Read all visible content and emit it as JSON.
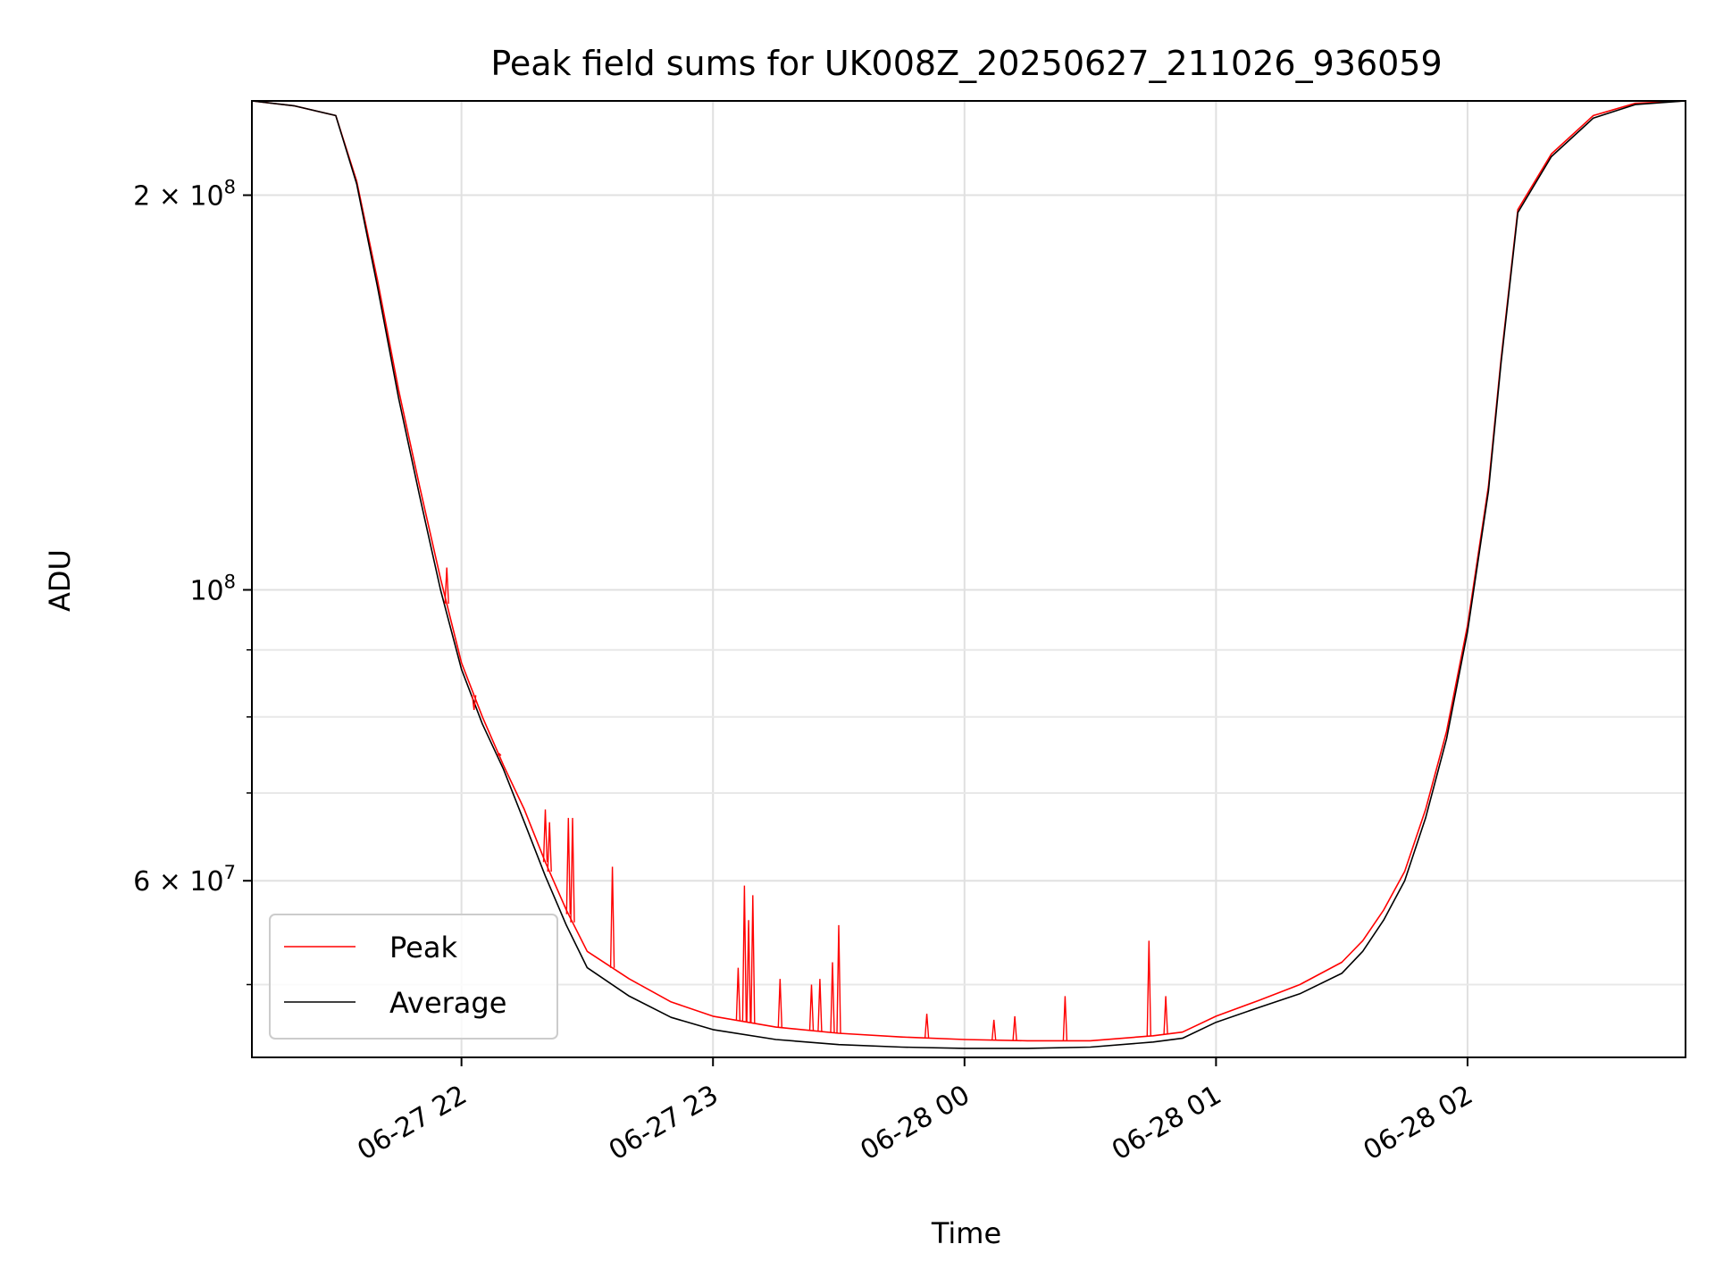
{
  "chart_data": {
    "type": "line",
    "title": "Peak field sums for UK008Z_20250627_211026_936059",
    "xlabel": "Time",
    "ylabel": "ADU",
    "yscale": "log",
    "ylim": [
      44000000,
      236000000
    ],
    "xlim": [
      "2025-06-27T21:10:00",
      "2025-06-28T02:52:00"
    ],
    "x_ticks": [
      {
        "value": "2025-06-27T22:00:00",
        "label": "06-27 22"
      },
      {
        "value": "2025-06-27T23:00:00",
        "label": "06-27 23"
      },
      {
        "value": "2025-06-28T00:00:00",
        "label": "06-28 00"
      },
      {
        "value": "2025-06-28T01:00:00",
        "label": "06-28 01"
      },
      {
        "value": "2025-06-28T02:00:00",
        "label": "06-28 02"
      }
    ],
    "y_major_ticks": [
      {
        "value": 200000000,
        "label": "2 × 10",
        "exp": "8"
      },
      {
        "value": 100000000,
        "label": "10",
        "exp": "8"
      },
      {
        "value": 60000000,
        "label": "6 × 10",
        "exp": "7"
      }
    ],
    "y_minor_ticks": [
      50000000,
      70000000,
      80000000,
      90000000
    ],
    "grid": true,
    "legend": {
      "position": "lower-left",
      "entries": [
        "Peak",
        "Average"
      ]
    },
    "series": [
      {
        "name": "Peak",
        "color": "#ff0000",
        "x": [
          "2025-06-27T21:10:00",
          "2025-06-27T21:20:00",
          "2025-06-27T21:30:00",
          "2025-06-27T21:35:00",
          "2025-06-27T21:40:00",
          "2025-06-27T21:45:00",
          "2025-06-27T21:50:00",
          "2025-06-27T21:55:00",
          "2025-06-27T22:00:00",
          "2025-06-27T22:05:00",
          "2025-06-27T22:10:00",
          "2025-06-27T22:15:00",
          "2025-06-27T22:20:00",
          "2025-06-27T22:25:00",
          "2025-06-27T22:30:00",
          "2025-06-27T22:40:00",
          "2025-06-27T22:50:00",
          "2025-06-27T23:00:00",
          "2025-06-27T23:15:00",
          "2025-06-27T23:30:00",
          "2025-06-27T23:45:00",
          "2025-06-28T00:00:00",
          "2025-06-28T00:15:00",
          "2025-06-28T00:30:00",
          "2025-06-28T00:45:00",
          "2025-06-28T00:52:00",
          "2025-06-28T01:00:00",
          "2025-06-28T01:10:00",
          "2025-06-28T01:20:00",
          "2025-06-28T01:30:00",
          "2025-06-28T01:35:00",
          "2025-06-28T01:40:00",
          "2025-06-28T01:45:00",
          "2025-06-28T01:50:00",
          "2025-06-28T01:55:00",
          "2025-06-28T02:00:00",
          "2025-06-28T02:05:00",
          "2025-06-28T02:08:00",
          "2025-06-28T02:12:00",
          "2025-06-28T02:20:00",
          "2025-06-28T02:30:00",
          "2025-06-28T02:40:00",
          "2025-06-28T02:52:00"
        ],
        "y": [
          236000000,
          234000000,
          230000000,
          205000000,
          172000000,
          142000000,
          120000000,
          102000000,
          88000000,
          80000000,
          73500000,
          68000000,
          62000000,
          57000000,
          53000000,
          50500000,
          48500000,
          47300000,
          46400000,
          45900000,
          45600000,
          45400000,
          45300000,
          45300000,
          45700000,
          46000000,
          47300000,
          48600000,
          50000000,
          52000000,
          54000000,
          57000000,
          61000000,
          68000000,
          78000000,
          94000000,
          120000000,
          150000000,
          195000000,
          215000000,
          230000000,
          235000000,
          236000000
        ]
      },
      {
        "name": "Average",
        "color": "#000000",
        "x": [
          "2025-06-27T21:10:00",
          "2025-06-27T21:20:00",
          "2025-06-27T21:30:00",
          "2025-06-27T21:35:00",
          "2025-06-27T21:40:00",
          "2025-06-27T21:45:00",
          "2025-06-27T21:50:00",
          "2025-06-27T21:55:00",
          "2025-06-27T22:00:00",
          "2025-06-27T22:05:00",
          "2025-06-27T22:10:00",
          "2025-06-27T22:15:00",
          "2025-06-27T22:20:00",
          "2025-06-27T22:25:00",
          "2025-06-27T22:30:00",
          "2025-06-27T22:40:00",
          "2025-06-27T22:50:00",
          "2025-06-27T23:00:00",
          "2025-06-27T23:15:00",
          "2025-06-27T23:30:00",
          "2025-06-27T23:45:00",
          "2025-06-28T00:00:00",
          "2025-06-28T00:15:00",
          "2025-06-28T00:30:00",
          "2025-06-28T00:45:00",
          "2025-06-28T00:52:00",
          "2025-06-28T01:00:00",
          "2025-06-28T01:10:00",
          "2025-06-28T01:20:00",
          "2025-06-28T01:30:00",
          "2025-06-28T01:35:00",
          "2025-06-28T01:40:00",
          "2025-06-28T01:45:00",
          "2025-06-28T01:50:00",
          "2025-06-28T01:55:00",
          "2025-06-28T02:00:00",
          "2025-06-28T02:05:00",
          "2025-06-28T02:08:00",
          "2025-06-28T02:12:00",
          "2025-06-28T02:20:00",
          "2025-06-28T02:30:00",
          "2025-06-28T02:40:00",
          "2025-06-28T02:52:00"
        ],
        "y": [
          236000000,
          234000000,
          230000000,
          204000000,
          170000000,
          140000000,
          118000000,
          100000000,
          87000000,
          79000000,
          73000000,
          66500000,
          60500000,
          55500000,
          51500000,
          49000000,
          47200000,
          46200000,
          45400000,
          45000000,
          44800000,
          44700000,
          44700000,
          44800000,
          45200000,
          45500000,
          46800000,
          48000000,
          49200000,
          51000000,
          53000000,
          56000000,
          60000000,
          67000000,
          77000000,
          93000000,
          119000000,
          149000000,
          194000000,
          214000000,
          229000000,
          234500000,
          236000000
        ]
      }
    ],
    "peak_spikes": [
      {
        "x": "2025-06-27T21:56:30",
        "y": 104000000
      },
      {
        "x": "2025-06-27T22:03:00",
        "y": 81000000
      },
      {
        "x": "2025-06-27T22:09:00",
        "y": 75000000
      },
      {
        "x": "2025-06-27T22:20:00",
        "y": 68000000
      },
      {
        "x": "2025-06-27T22:21:00",
        "y": 66500000
      },
      {
        "x": "2025-06-27T22:25:30",
        "y": 67000000
      },
      {
        "x": "2025-06-27T22:26:30",
        "y": 67000000
      },
      {
        "x": "2025-06-27T22:36:00",
        "y": 61500000
      },
      {
        "x": "2025-06-27T23:06:00",
        "y": 51500000
      },
      {
        "x": "2025-06-27T23:07:30",
        "y": 59500000
      },
      {
        "x": "2025-06-27T23:08:30",
        "y": 56000000
      },
      {
        "x": "2025-06-27T23:09:30",
        "y": 58500000
      },
      {
        "x": "2025-06-27T23:16:00",
        "y": 50500000
      },
      {
        "x": "2025-06-27T23:23:30",
        "y": 50000000
      },
      {
        "x": "2025-06-27T23:25:30",
        "y": 50500000
      },
      {
        "x": "2025-06-27T23:28:30",
        "y": 52000000
      },
      {
        "x": "2025-06-27T23:30:00",
        "y": 55500000
      },
      {
        "x": "2025-06-27T23:51:00",
        "y": 47500000
      },
      {
        "x": "2025-06-28T00:07:00",
        "y": 47000000
      },
      {
        "x": "2025-06-28T00:12:00",
        "y": 47300000
      },
      {
        "x": "2025-06-28T00:24:00",
        "y": 49000000
      },
      {
        "x": "2025-06-28T00:44:00",
        "y": 54000000
      },
      {
        "x": "2025-06-28T00:48:00",
        "y": 49000000
      }
    ]
  }
}
